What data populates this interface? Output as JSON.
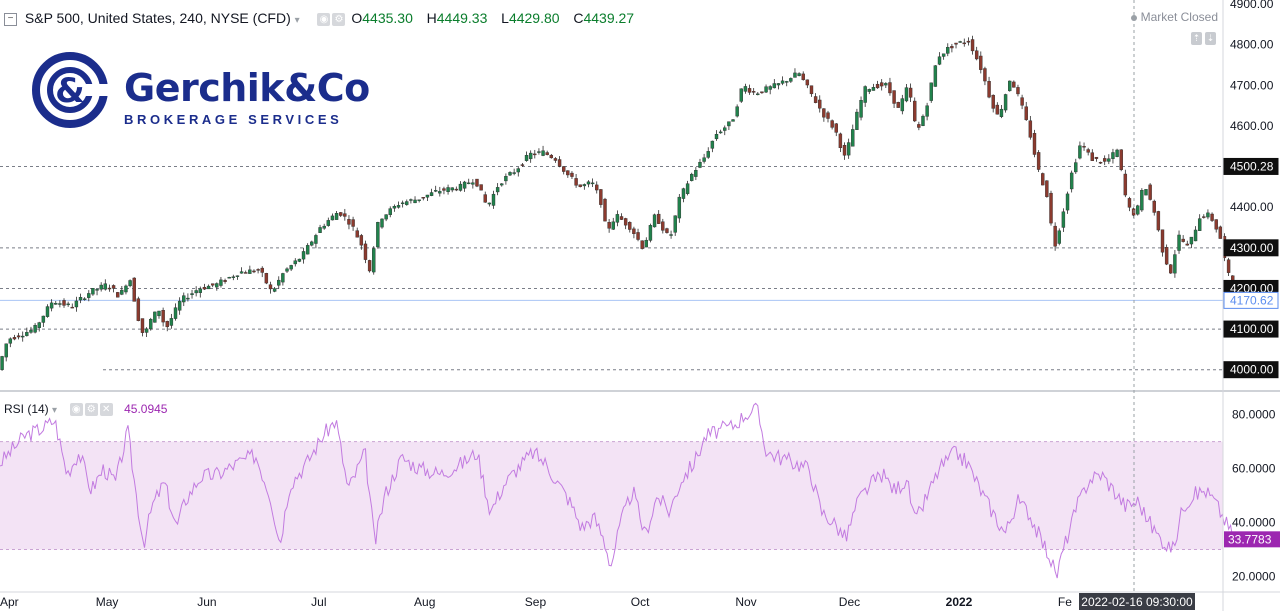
{
  "header": {
    "collapse_icon": "minus-box-icon",
    "symbol": "S&P 500, United States, 240, NYSE (CFD)",
    "dropdown_icon": "chevron-down-icon",
    "o_label": "O",
    "o_value": "4435.30",
    "h_label": "H",
    "h_value": "4449.33",
    "l_label": "L",
    "l_value": "4429.80",
    "c_label": "C",
    "c_value": "4439.27",
    "market_status": "Market Closed"
  },
  "logo": {
    "name": "Gerchik&Co",
    "subtitle": "BROKERAGE SERVICES",
    "color": "#1b2d8c"
  },
  "rsi_header": {
    "label": "RSI (14)",
    "value": "45.0945"
  },
  "crosshair_time": "2022-02-16 09:30:00",
  "colors": {
    "up": "#21824c",
    "down": "#8b3a2e",
    "rsi_line": "#c27be0",
    "rsi_band": "#f3e3f5",
    "accent_blue": "#5b8def",
    "rsi_accent": "#9c27b0"
  },
  "chart_data": [
    {
      "type": "candlestick",
      "ylim": [
        3950,
        4910
      ],
      "y_ticks": [
        "4900.00",
        "4800.00",
        "4700.00",
        "4600.00",
        "4500.00",
        "4400.00",
        "4300.00",
        "4200.00",
        "4100.00",
        "4000.00"
      ],
      "price_labels": [
        {
          "text": "4500.28",
          "value": 4500.28,
          "style": "black"
        },
        {
          "text": "4300.00",
          "value": 4300,
          "style": "black"
        },
        {
          "text": "4200.00",
          "value": 4200,
          "style": "black"
        },
        {
          "text": "4170.62",
          "value": 4170.62,
          "style": "blue"
        },
        {
          "text": "4100.00",
          "value": 4100,
          "style": "black"
        },
        {
          "text": "4000.00",
          "value": 4000,
          "style": "black"
        }
      ],
      "horizontal_levels": [
        4500.28,
        4300,
        4200,
        4100,
        4000
      ],
      "current_price": 4170.62,
      "x_labels": [
        "Apr",
        "May",
        "Jun",
        "Jul",
        "Aug",
        "Sep",
        "Oct",
        "Nov",
        "Dec",
        "2022",
        "Fe"
      ],
      "x_label_positions": [
        0,
        0.088,
        0.17,
        0.262,
        0.349,
        0.44,
        0.526,
        0.613,
        0.698,
        0.788,
        0.875
      ],
      "close_path": [
        [
          0.0,
          4000
        ],
        [
          0.008,
          4075
        ],
        [
          0.03,
          4100
        ],
        [
          0.045,
          4170
        ],
        [
          0.06,
          4155
        ],
        [
          0.075,
          4190
        ],
        [
          0.09,
          4210
        ],
        [
          0.1,
          4180
        ],
        [
          0.108,
          4230
        ],
        [
          0.115,
          4130
        ],
        [
          0.12,
          4080
        ],
        [
          0.125,
          4120
        ],
        [
          0.132,
          4150
        ],
        [
          0.138,
          4100
        ],
        [
          0.15,
          4170
        ],
        [
          0.165,
          4200
        ],
        [
          0.18,
          4210
        ],
        [
          0.198,
          4240
        ],
        [
          0.215,
          4245
        ],
        [
          0.225,
          4190
        ],
        [
          0.235,
          4240
        ],
        [
          0.25,
          4280
        ],
        [
          0.265,
          4350
        ],
        [
          0.28,
          4390
        ],
        [
          0.29,
          4360
        ],
        [
          0.3,
          4300
        ],
        [
          0.305,
          4240
        ],
        [
          0.313,
          4370
        ],
        [
          0.33,
          4410
        ],
        [
          0.345,
          4420
        ],
        [
          0.362,
          4440
        ],
        [
          0.38,
          4450
        ],
        [
          0.392,
          4470
        ],
        [
          0.402,
          4400
        ],
        [
          0.412,
          4460
        ],
        [
          0.425,
          4490
        ],
        [
          0.437,
          4530
        ],
        [
          0.448,
          4535
        ],
        [
          0.458,
          4520
        ],
        [
          0.468,
          4480
        ],
        [
          0.478,
          4450
        ],
        [
          0.488,
          4460
        ],
        [
          0.495,
          4420
        ],
        [
          0.5,
          4340
        ],
        [
          0.508,
          4380
        ],
        [
          0.52,
          4350
        ],
        [
          0.53,
          4300
        ],
        [
          0.54,
          4380
        ],
        [
          0.552,
          4320
        ],
        [
          0.56,
          4420
        ],
        [
          0.57,
          4480
        ],
        [
          0.58,
          4520
        ],
        [
          0.59,
          4580
        ],
        [
          0.603,
          4610
        ],
        [
          0.612,
          4700
        ],
        [
          0.622,
          4680
        ],
        [
          0.64,
          4700
        ],
        [
          0.658,
          4730
        ],
        [
          0.668,
          4680
        ],
        [
          0.678,
          4630
        ],
        [
          0.688,
          4590
        ],
        [
          0.696,
          4520
        ],
        [
          0.705,
          4620
        ],
        [
          0.712,
          4690
        ],
        [
          0.722,
          4700
        ],
        [
          0.73,
          4700
        ],
        [
          0.74,
          4640
        ],
        [
          0.748,
          4700
        ],
        [
          0.755,
          4580
        ],
        [
          0.763,
          4650
        ],
        [
          0.772,
          4770
        ],
        [
          0.785,
          4800
        ],
        [
          0.798,
          4810
        ],
        [
          0.808,
          4740
        ],
        [
          0.815,
          4670
        ],
        [
          0.822,
          4620
        ],
        [
          0.832,
          4720
        ],
        [
          0.84,
          4660
        ],
        [
          0.848,
          4580
        ],
        [
          0.855,
          4490
        ],
        [
          0.862,
          4430
        ],
        [
          0.868,
          4300
        ],
        [
          0.873,
          4360
        ],
        [
          0.882,
          4480
        ],
        [
          0.89,
          4560
        ],
        [
          0.898,
          4520
        ],
        [
          0.91,
          4510
        ],
        [
          0.92,
          4540
        ],
        [
          0.928,
          4400
        ],
        [
          0.935,
          4380
        ],
        [
          0.942,
          4460
        ],
        [
          0.95,
          4390
        ],
        [
          0.958,
          4280
        ],
        [
          0.964,
          4240
        ],
        [
          0.97,
          4330
        ],
        [
          0.978,
          4300
        ],
        [
          0.988,
          4380
        ],
        [
          0.996,
          4380
        ],
        [
          1.004,
          4330
        ],
        [
          1.01,
          4240
        ],
        [
          1.018,
          4190
        ]
      ],
      "high_marker": 4818,
      "low_marker": 3985
    },
    {
      "type": "line",
      "series_label": "RSI (14)",
      "ylim": [
        15,
        88
      ],
      "y_ticks": [
        "80.0000",
        "60.0000",
        "40.0000",
        "20.0000"
      ],
      "band": [
        30,
        70
      ],
      "current_value": 33.7783,
      "current_label": "33.7783",
      "path": [
        [
          0.0,
          62
        ],
        [
          0.02,
          72
        ],
        [
          0.035,
          75
        ],
        [
          0.045,
          78
        ],
        [
          0.055,
          58
        ],
        [
          0.065,
          66
        ],
        [
          0.075,
          52
        ],
        [
          0.085,
          60
        ],
        [
          0.095,
          55
        ],
        [
          0.105,
          74
        ],
        [
          0.112,
          50
        ],
        [
          0.118,
          32
        ],
        [
          0.125,
          46
        ],
        [
          0.135,
          55
        ],
        [
          0.145,
          38
        ],
        [
          0.152,
          48
        ],
        [
          0.165,
          57
        ],
        [
          0.18,
          58
        ],
        [
          0.195,
          62
        ],
        [
          0.21,
          65
        ],
        [
          0.222,
          50
        ],
        [
          0.23,
          32
        ],
        [
          0.238,
          54
        ],
        [
          0.252,
          62
        ],
        [
          0.265,
          72
        ],
        [
          0.276,
          78
        ],
        [
          0.286,
          52
        ],
        [
          0.3,
          66
        ],
        [
          0.308,
          32
        ],
        [
          0.316,
          50
        ],
        [
          0.33,
          64
        ],
        [
          0.345,
          60
        ],
        [
          0.362,
          58
        ],
        [
          0.38,
          62
        ],
        [
          0.392,
          66
        ],
        [
          0.403,
          44
        ],
        [
          0.414,
          54
        ],
        [
          0.425,
          60
        ],
        [
          0.438,
          66
        ],
        [
          0.448,
          62
        ],
        [
          0.458,
          55
        ],
        [
          0.468,
          48
        ],
        [
          0.478,
          38
        ],
        [
          0.488,
          42
        ],
        [
          0.496,
          34
        ],
        [
          0.502,
          24
        ],
        [
          0.51,
          40
        ],
        [
          0.52,
          52
        ],
        [
          0.53,
          35
        ],
        [
          0.54,
          50
        ],
        [
          0.55,
          44
        ],
        [
          0.56,
          56
        ],
        [
          0.57,
          62
        ],
        [
          0.58,
          72
        ],
        [
          0.59,
          74
        ],
        [
          0.603,
          76
        ],
        [
          0.612,
          80
        ],
        [
          0.622,
          82
        ],
        [
          0.63,
          66
        ],
        [
          0.642,
          64
        ],
        [
          0.654,
          62
        ],
        [
          0.665,
          60
        ],
        [
          0.675,
          44
        ],
        [
          0.685,
          40
        ],
        [
          0.695,
          34
        ],
        [
          0.705,
          48
        ],
        [
          0.715,
          54
        ],
        [
          0.725,
          58
        ],
        [
          0.735,
          52
        ],
        [
          0.745,
          56
        ],
        [
          0.752,
          40
        ],
        [
          0.762,
          50
        ],
        [
          0.772,
          60
        ],
        [
          0.785,
          66
        ],
        [
          0.795,
          62
        ],
        [
          0.808,
          50
        ],
        [
          0.818,
          42
        ],
        [
          0.826,
          36
        ],
        [
          0.836,
          48
        ],
        [
          0.845,
          44
        ],
        [
          0.855,
          34
        ],
        [
          0.862,
          28
        ],
        [
          0.868,
          20
        ],
        [
          0.875,
          32
        ],
        [
          0.885,
          46
        ],
        [
          0.895,
          56
        ],
        [
          0.905,
          58
        ],
        [
          0.915,
          52
        ],
        [
          0.925,
          46
        ],
        [
          0.935,
          48
        ],
        [
          0.942,
          42
        ],
        [
          0.95,
          36
        ],
        [
          0.958,
          32
        ],
        [
          0.964,
          30
        ],
        [
          0.972,
          46
        ],
        [
          0.98,
          50
        ],
        [
          0.99,
          52
        ],
        [
          0.998,
          48
        ],
        [
          1.005,
          42
        ],
        [
          1.012,
          36
        ],
        [
          1.018,
          34
        ]
      ]
    }
  ]
}
